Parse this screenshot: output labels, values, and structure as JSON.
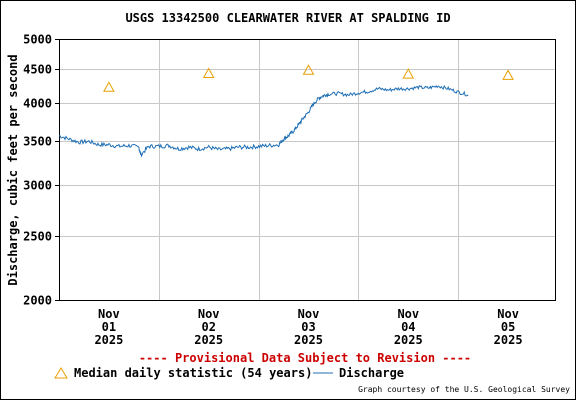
{
  "chart_data": {
    "type": "line",
    "title": "USGS 13342500 CLEARWATER RIVER AT SPALDING ID",
    "ylabel": "Discharge, cubic feet per second",
    "y_scale": "log",
    "ylim": [
      2000,
      5000
    ],
    "y_ticks": [
      2000,
      2500,
      3000,
      3500,
      4000,
      4500,
      5000
    ],
    "y_tick_labels": [
      "2000",
      "2500",
      "3000",
      "3500",
      "4000",
      "4500",
      "5000"
    ],
    "xlim": [
      -0.5,
      4.47
    ],
    "x_ticks": [
      0,
      1,
      2,
      3,
      4
    ],
    "x_tick_labels": [
      [
        "Nov",
        "01",
        "2025"
      ],
      [
        "Nov",
        "02",
        "2025"
      ],
      [
        "Nov",
        "03",
        "2025"
      ],
      [
        "Nov",
        "04",
        "2025"
      ],
      [
        "Nov",
        "05",
        "2025"
      ]
    ],
    "grid": true,
    "legend_placement": "bottom",
    "series": [
      {
        "name": "Median daily statistic (54 years)",
        "marker": "triangle",
        "color": "#e8a000",
        "x": [
          0,
          1,
          2,
          3,
          4
        ],
        "y": [
          4220,
          4430,
          4480,
          4420,
          4400
        ]
      },
      {
        "name": "Discharge",
        "color": "#1f6fb5",
        "x": [
          -0.5,
          -0.4,
          -0.3,
          -0.2,
          -0.1,
          0,
          0.1,
          0.2,
          0.3,
          0.32,
          0.4,
          0.5,
          0.6,
          0.7,
          0.8,
          0.9,
          1.0,
          1.1,
          1.2,
          1.3,
          1.4,
          1.5,
          1.6,
          1.7,
          1.75,
          1.8,
          1.85,
          1.9,
          1.95,
          2.0,
          2.05,
          2.1,
          2.15,
          2.2,
          2.3,
          2.4,
          2.5,
          2.6,
          2.7,
          2.8,
          2.9,
          3.0,
          3.1,
          3.2,
          3.3,
          3.4,
          3.5,
          3.6
        ],
        "y": [
          3560,
          3520,
          3480,
          3490,
          3450,
          3450,
          3430,
          3440,
          3420,
          3330,
          3430,
          3430,
          3440,
          3400,
          3420,
          3400,
          3420,
          3390,
          3400,
          3420,
          3420,
          3430,
          3440,
          3450,
          3520,
          3560,
          3620,
          3700,
          3790,
          3870,
          3980,
          4060,
          4100,
          4120,
          4130,
          4110,
          4140,
          4160,
          4200,
          4180,
          4200,
          4200,
          4220,
          4210,
          4240,
          4200,
          4150,
          4110
        ]
      }
    ]
  },
  "provisional_text": "---- Provisional Data Subject to Revision ----",
  "provisional_color": "#cc0000",
  "legend": {
    "median_label": "Median daily statistic (54 years)",
    "discharge_label": "Discharge"
  },
  "credit": "Graph courtesy of the U.S. Geological Survey"
}
